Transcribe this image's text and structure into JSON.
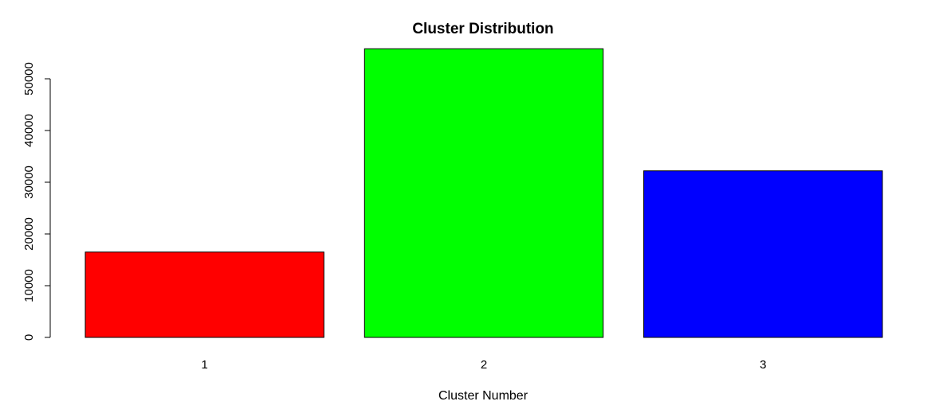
{
  "chart_data": {
    "type": "bar",
    "title": "Cluster Distribution",
    "xlabel": "Cluster Number",
    "ylabel": "",
    "categories": [
      "1",
      "2",
      "3"
    ],
    "values": [
      16500,
      55800,
      32200
    ],
    "colors": [
      "#ff0000",
      "#00ff00",
      "#0000ff"
    ],
    "bar_border_color": "#000000",
    "ylim": [
      0,
      56000
    ],
    "yticks": [
      0,
      10000,
      20000,
      30000,
      40000,
      50000
    ],
    "grid": false,
    "legend": "none"
  }
}
